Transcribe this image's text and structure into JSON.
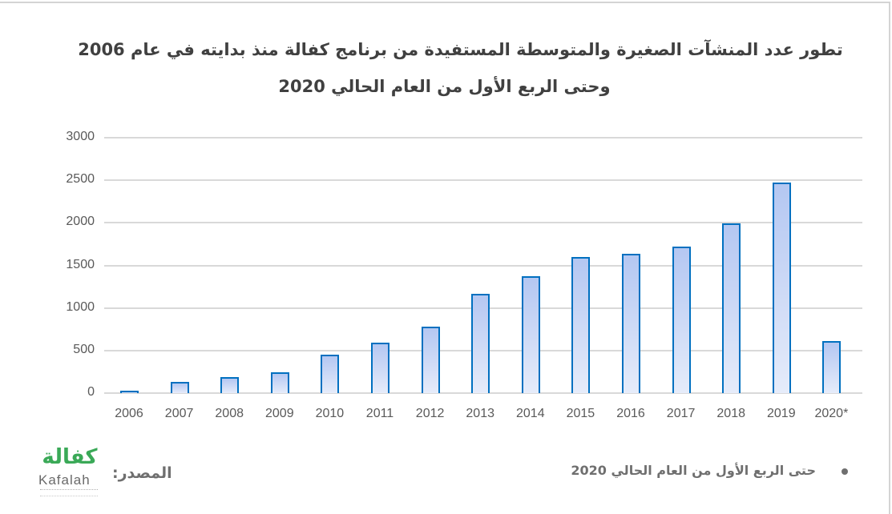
{
  "title": {
    "line1": "تطور عدد المنشآت الصغيرة والمتوسطة المستفيدة من برنامج كفالة منذ بدايته في عام 2006",
    "line2": "وحتى الربع الأول من العام الحالي 2020"
  },
  "y_axis": {
    "ticks": [
      "3000",
      "2500",
      "2000",
      "1500",
      "1000",
      "500",
      "0"
    ]
  },
  "x_axis": {
    "ticks": [
      "2006",
      "2007",
      "2008",
      "2009",
      "2010",
      "2011",
      "2012",
      "2013",
      "2014",
      "2015",
      "2016",
      "2017",
      "2018",
      "2019",
      "2020*"
    ]
  },
  "footer": {
    "source_label": "المصدر:",
    "logo_arabic": "كفالة",
    "logo_english": "Kafalah",
    "note": "حتى الربع الأول من العام الحالي 2020"
  },
  "colors": {
    "bar_border": "#0070c0",
    "bar_fill_top": "#b4c7f2",
    "bar_fill_bottom": "#e6ecfa",
    "grid": "#d9d9d9",
    "logo_green": "#3aa957"
  },
  "chart_data": {
    "type": "bar",
    "title": "تطور عدد المنشآت الصغيرة والمتوسطة المستفيدة من برنامج كفالة منذ بدايته في عام 2006 وحتى الربع الأول من العام الحالي 2020",
    "categories": [
      "2006",
      "2007",
      "2008",
      "2009",
      "2010",
      "2011",
      "2012",
      "2013",
      "2014",
      "2015",
      "2016",
      "2017",
      "2018",
      "2019",
      "2020*"
    ],
    "values": [
      25,
      135,
      190,
      240,
      455,
      595,
      780,
      1165,
      1370,
      1595,
      1640,
      1720,
      1990,
      2470,
      610
    ],
    "xlabel": "",
    "ylabel": "",
    "ylim": [
      0,
      3000
    ],
    "yticks": [
      0,
      500,
      1000,
      1500,
      2000,
      2500,
      3000
    ],
    "grid": true,
    "legend": null,
    "annotations": [
      "* حتى الربع الأول من العام الحالي 2020"
    ]
  }
}
